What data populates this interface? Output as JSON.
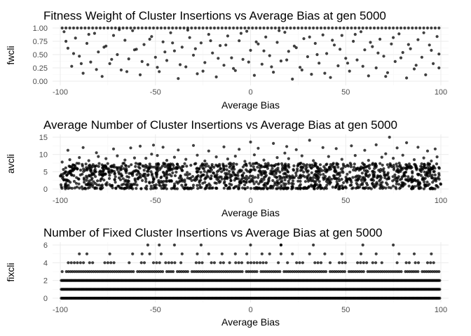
{
  "chart_data": [
    {
      "type": "scatter",
      "title": "Fitness Weight of Cluster Insertions vs Average Bias at gen 5000",
      "xlabel": "Average Bias",
      "ylabel": "fwcli",
      "xlim": [
        -100,
        100
      ],
      "ylim": [
        0,
        1
      ],
      "x_ticks": [
        "-100",
        "-50",
        "0",
        "50",
        "100"
      ],
      "y_ticks": [
        "0.00",
        "0.25",
        "0.50",
        "0.75",
        "1.00"
      ],
      "grid": true,
      "points": [
        [
          -97,
          1.0
        ],
        [
          -95,
          1.0
        ],
        [
          -93,
          1.0
        ],
        [
          -91,
          1.0
        ],
        [
          -89,
          1.0
        ],
        [
          -87,
          1.0
        ],
        [
          -85,
          1.0
        ],
        [
          -83,
          1.0
        ],
        [
          -81,
          1.0
        ],
        [
          -79,
          1.0
        ],
        [
          -77,
          1.0
        ],
        [
          -75,
          1.0
        ],
        [
          -73,
          1.0
        ],
        [
          -71,
          1.0
        ],
        [
          -69,
          1.0
        ],
        [
          -67,
          1.0
        ],
        [
          -65,
          1.0
        ],
        [
          -63,
          1.0
        ],
        [
          -61,
          1.0
        ],
        [
          -59,
          1.0
        ],
        [
          -57,
          1.0
        ],
        [
          -55,
          1.0
        ],
        [
          -53,
          1.0
        ],
        [
          -51,
          1.0
        ],
        [
          -49,
          1.0
        ],
        [
          -47,
          1.0
        ],
        [
          -45,
          1.0
        ],
        [
          -43,
          1.0
        ],
        [
          -41,
          1.0
        ],
        [
          -39,
          1.0
        ],
        [
          -37,
          1.0
        ],
        [
          -35,
          1.0
        ],
        [
          -33,
          1.0
        ],
        [
          -31,
          1.0
        ],
        [
          -29,
          1.0
        ],
        [
          -27,
          1.0
        ],
        [
          -25,
          1.0
        ],
        [
          -23,
          1.0
        ],
        [
          -21,
          1.0
        ],
        [
          -19,
          1.0
        ],
        [
          -17,
          1.0
        ],
        [
          -15,
          1.0
        ],
        [
          -13,
          1.0
        ],
        [
          -11,
          1.0
        ],
        [
          -9,
          1.0
        ],
        [
          -7,
          1.0
        ],
        [
          -5,
          1.0
        ],
        [
          -3,
          1.0
        ],
        [
          -1,
          1.0
        ],
        [
          1,
          1.0
        ],
        [
          3,
          1.0
        ],
        [
          5,
          1.0
        ],
        [
          7,
          1.0
        ],
        [
          9,
          1.0
        ],
        [
          11,
          1.0
        ],
        [
          13,
          1.0
        ],
        [
          15,
          1.0
        ],
        [
          17,
          1.0
        ],
        [
          19,
          1.0
        ],
        [
          21,
          1.0
        ],
        [
          23,
          1.0
        ],
        [
          25,
          1.0
        ],
        [
          27,
          1.0
        ],
        [
          29,
          1.0
        ],
        [
          31,
          1.0
        ],
        [
          33,
          1.0
        ],
        [
          35,
          1.0
        ],
        [
          37,
          1.0
        ],
        [
          39,
          1.0
        ],
        [
          41,
          1.0
        ],
        [
          43,
          1.0
        ],
        [
          45,
          1.0
        ],
        [
          47,
          1.0
        ],
        [
          49,
          1.0
        ],
        [
          51,
          1.0
        ],
        [
          53,
          1.0
        ],
        [
          55,
          1.0
        ],
        [
          57,
          1.0
        ],
        [
          59,
          1.0
        ],
        [
          61,
          1.0
        ],
        [
          63,
          1.0
        ],
        [
          65,
          1.0
        ],
        [
          67,
          1.0
        ],
        [
          69,
          1.0
        ],
        [
          71,
          1.0
        ],
        [
          73,
          1.0
        ],
        [
          75,
          1.0
        ],
        [
          77,
          1.0
        ],
        [
          79,
          1.0
        ],
        [
          81,
          1.0
        ],
        [
          83,
          1.0
        ],
        [
          85,
          1.0
        ],
        [
          87,
          1.0
        ],
        [
          89,
          1.0
        ],
        [
          91,
          1.0
        ],
        [
          93,
          1.0
        ],
        [
          95,
          1.0
        ],
        [
          97,
          1.0
        ],
        [
          99,
          1.0
        ],
        [
          -99,
          1.0
        ],
        [
          -98,
          0.93
        ],
        [
          -96,
          0.62
        ],
        [
          -94,
          0.28
        ],
        [
          -92,
          0.81
        ],
        [
          -90,
          0.47
        ],
        [
          -88,
          0.15
        ],
        [
          -86,
          0.71
        ],
        [
          -84,
          0.36
        ],
        [
          -82,
          0.9
        ],
        [
          -80,
          0.55
        ],
        [
          -78,
          0.09
        ],
        [
          -76,
          0.66
        ],
        [
          -74,
          0.33
        ],
        [
          -72,
          0.86
        ],
        [
          -70,
          0.5
        ],
        [
          -68,
          0.21
        ],
        [
          -66,
          0.77
        ],
        [
          -64,
          0.42
        ],
        [
          -62,
          0.95
        ],
        [
          -60,
          0.6
        ],
        [
          -58,
          0.12
        ],
        [
          -56,
          0.69
        ],
        [
          -54,
          0.31
        ],
        [
          -52,
          0.84
        ],
        [
          -50,
          0.45
        ],
        [
          -48,
          0.18
        ],
        [
          -46,
          0.74
        ],
        [
          -44,
          0.39
        ],
        [
          -42,
          0.91
        ],
        [
          -40,
          0.57
        ],
        [
          -38,
          0.05
        ],
        [
          -36,
          0.64
        ],
        [
          -34,
          0.27
        ],
        [
          -32,
          0.82
        ],
        [
          -30,
          0.49
        ],
        [
          -28,
          0.14
        ],
        [
          -26,
          0.72
        ],
        [
          -24,
          0.35
        ],
        [
          -22,
          0.88
        ],
        [
          -20,
          0.53
        ],
        [
          -18,
          0.08
        ],
        [
          -16,
          0.67
        ],
        [
          -14,
          0.3
        ],
        [
          -12,
          0.85
        ],
        [
          -10,
          0.44
        ],
        [
          -8,
          0.2
        ],
        [
          -6,
          0.76
        ],
        [
          -4,
          0.41
        ],
        [
          -2,
          0.94
        ],
        [
          0,
          0.58
        ],
        [
          2,
          0.11
        ],
        [
          4,
          0.7
        ],
        [
          6,
          0.32
        ],
        [
          8,
          0.83
        ],
        [
          10,
          0.48
        ],
        [
          12,
          0.17
        ],
        [
          14,
          0.73
        ],
        [
          16,
          0.38
        ],
        [
          18,
          0.92
        ],
        [
          20,
          0.56
        ],
        [
          22,
          0.04
        ],
        [
          24,
          0.63
        ],
        [
          26,
          0.26
        ],
        [
          28,
          0.8
        ],
        [
          30,
          0.46
        ],
        [
          32,
          0.13
        ],
        [
          34,
          0.71
        ],
        [
          36,
          0.34
        ],
        [
          38,
          0.87
        ],
        [
          40,
          0.52
        ],
        [
          42,
          0.07
        ],
        [
          44,
          0.68
        ],
        [
          46,
          0.29
        ],
        [
          48,
          0.86
        ],
        [
          50,
          0.43
        ],
        [
          52,
          0.19
        ],
        [
          54,
          0.75
        ],
        [
          56,
          0.4
        ],
        [
          58,
          0.93
        ],
        [
          60,
          0.59
        ],
        [
          62,
          0.1
        ],
        [
          64,
          0.65
        ],
        [
          66,
          0.25
        ],
        [
          68,
          0.79
        ],
        [
          70,
          0.47
        ],
        [
          72,
          0.16
        ],
        [
          74,
          0.7
        ],
        [
          76,
          0.37
        ],
        [
          78,
          0.89
        ],
        [
          80,
          0.54
        ],
        [
          82,
          0.06
        ],
        [
          84,
          0.61
        ],
        [
          86,
          0.23
        ],
        [
          88,
          0.78
        ],
        [
          90,
          0.45
        ],
        [
          92,
          0.12
        ],
        [
          94,
          0.68
        ],
        [
          96,
          0.33
        ],
        [
          98,
          0.84
        ],
        [
          99,
          0.51
        ],
        [
          -97,
          0.75
        ],
        [
          -93,
          0.52
        ],
        [
          -89,
          0.33
        ],
        [
          -85,
          0.88
        ],
        [
          -81,
          0.22
        ],
        [
          -77,
          0.64
        ],
        [
          -73,
          0.41
        ],
        [
          -69,
          0.97
        ],
        [
          -65,
          0.18
        ],
        [
          -61,
          0.59
        ],
        [
          -57,
          0.37
        ],
        [
          -53,
          0.79
        ],
        [
          -49,
          0.26
        ],
        [
          -45,
          0.55
        ],
        [
          -41,
          0.72
        ],
        [
          -37,
          0.31
        ],
        [
          -33,
          0.96
        ],
        [
          -29,
          0.61
        ],
        [
          -25,
          0.19
        ],
        [
          -21,
          0.76
        ],
        [
          -17,
          0.43
        ],
        [
          -13,
          0.68
        ],
        [
          -9,
          0.24
        ],
        [
          -5,
          0.9
        ],
        [
          -1,
          0.36
        ],
        [
          3,
          0.74
        ],
        [
          7,
          0.57
        ],
        [
          11,
          0.27
        ],
        [
          15,
          0.95
        ],
        [
          19,
          0.4
        ],
        [
          23,
          0.66
        ],
        [
          27,
          0.21
        ],
        [
          31,
          0.83
        ],
        [
          35,
          0.5
        ],
        [
          39,
          0.15
        ],
        [
          43,
          0.77
        ],
        [
          47,
          0.6
        ],
        [
          51,
          0.34
        ],
        [
          55,
          0.88
        ],
        [
          59,
          0.28
        ],
        [
          63,
          0.73
        ],
        [
          67,
          0.53
        ],
        [
          71,
          0.09
        ],
        [
          75,
          0.82
        ],
        [
          79,
          0.44
        ],
        [
          83,
          0.69
        ],
        [
          87,
          0.3
        ],
        [
          91,
          0.91
        ],
        [
          95,
          0.58
        ],
        [
          99,
          0.25
        ]
      ]
    },
    {
      "type": "scatter",
      "title": "Average Number of Cluster Insertions vs Average Bias at gen 5000",
      "xlabel": "Average Bias",
      "ylabel": "avcli",
      "xlim": [
        -100,
        100
      ],
      "ylim": [
        0,
        15
      ],
      "x_ticks": [
        "-100",
        "-50",
        "0",
        "50",
        "100"
      ],
      "y_ticks": [
        "0",
        "5",
        "10",
        "15"
      ],
      "grid": true,
      "points": [
        [
          -96,
          11.2
        ],
        [
          -88,
          12.0
        ],
        [
          -81,
          10.5
        ],
        [
          -72,
          11.6
        ],
        [
          -63,
          11.9
        ],
        [
          -58,
          12.4
        ],
        [
          -51,
          12.7
        ],
        [
          -46,
          12.1
        ],
        [
          -38,
          11.3
        ],
        [
          -30,
          12.6
        ],
        [
          -22,
          11.0
        ],
        [
          -14,
          12.2
        ],
        [
          -6,
          11.5
        ],
        [
          0,
          13.6
        ],
        [
          4,
          11.8
        ],
        [
          12,
          13.2
        ],
        [
          19,
          12.3
        ],
        [
          24,
          11.4
        ],
        [
          31,
          14.1
        ],
        [
          38,
          12.0
        ],
        [
          45,
          11.7
        ],
        [
          53,
          12.5
        ],
        [
          60,
          11.2
        ],
        [
          66,
          12.8
        ],
        [
          73,
          15.0
        ],
        [
          77,
          11.9
        ],
        [
          82,
          13.4
        ],
        [
          88,
          12.1
        ],
        [
          93,
          11.0
        ],
        [
          97,
          11.6
        ],
        [
          -99,
          7.8
        ],
        [
          -95,
          8.5
        ],
        [
          -90,
          9.1
        ],
        [
          -85,
          8.2
        ],
        [
          -80,
          9.4
        ],
        [
          -76,
          8.8
        ],
        [
          -70,
          9.6
        ],
        [
          -66,
          8.4
        ],
        [
          -61,
          9.0
        ],
        [
          -55,
          8.9
        ],
        [
          -49,
          9.7
        ],
        [
          -44,
          8.3
        ],
        [
          -40,
          9.2
        ],
        [
          -34,
          8.6
        ],
        [
          -28,
          9.8
        ],
        [
          -24,
          8.1
        ],
        [
          -18,
          9.3
        ],
        [
          -12,
          8.7
        ],
        [
          -8,
          9.5
        ],
        [
          -3,
          8.0
        ],
        [
          2,
          9.9
        ],
        [
          7,
          8.4
        ],
        [
          14,
          9.1
        ],
        [
          20,
          8.8
        ],
        [
          27,
          9.6
        ],
        [
          33,
          8.2
        ],
        [
          41,
          9.4
        ],
        [
          48,
          8.6
        ],
        [
          55,
          9.7
        ],
        [
          62,
          8.3
        ],
        [
          69,
          9.2
        ],
        [
          75,
          8.9
        ],
        [
          80,
          9.8
        ],
        [
          86,
          8.5
        ],
        [
          91,
          9.0
        ],
        [
          95,
          8.1
        ],
        [
          98,
          9.3
        ],
        [
          -52,
          10.1
        ],
        [
          18,
          10.4
        ],
        [
          71,
          10.2
        ]
      ],
      "band": {
        "ymin": 0,
        "ymax": 7.5,
        "count": 1400,
        "note": "dense cloud of points spanning the full x range"
      }
    },
    {
      "type": "scatter",
      "title": "Number of Fixed Cluster Insertions vs Average Bias at gen 5000",
      "xlabel": "Average Bias",
      "ylabel": "fixcli",
      "xlim": [
        -100,
        100
      ],
      "ylim": [
        0,
        6
      ],
      "x_ticks": [
        "-100",
        "-50",
        "0",
        "50",
        "100"
      ],
      "y_ticks": [
        "0",
        "2",
        "4",
        "6"
      ],
      "grid": true,
      "rows": [
        {
          "y": 0,
          "density": "continuous"
        },
        {
          "y": 1,
          "density": "continuous"
        },
        {
          "y": 2,
          "density": "continuous"
        },
        {
          "y": 3,
          "density": "dense"
        },
        {
          "y": 4,
          "density": "sparse"
        }
      ],
      "points": [
        [
          -90,
          5
        ],
        [
          -86,
          5
        ],
        [
          -74,
          5
        ],
        [
          -62,
          5
        ],
        [
          -57,
          5
        ],
        [
          -53,
          5
        ],
        [
          -47,
          5
        ],
        [
          -36,
          5
        ],
        [
          -28,
          5
        ],
        [
          -22,
          5
        ],
        [
          -15,
          5
        ],
        [
          -8,
          5
        ],
        [
          -2,
          5
        ],
        [
          6,
          5
        ],
        [
          10,
          5
        ],
        [
          16,
          5
        ],
        [
          22,
          5
        ],
        [
          31,
          5
        ],
        [
          39,
          5
        ],
        [
          48,
          5
        ],
        [
          58,
          5
        ],
        [
          66,
          5
        ],
        [
          78,
          5
        ],
        [
          86,
          5
        ],
        [
          95,
          5
        ],
        [
          -54,
          6
        ],
        [
          -48,
          6
        ],
        [
          -40,
          6
        ],
        [
          -26,
          6
        ],
        [
          0,
          6
        ],
        [
          16,
          6
        ],
        [
          33,
          6
        ],
        [
          59,
          6
        ],
        [
          75,
          6
        ],
        [
          16,
          6
        ]
      ]
    }
  ]
}
